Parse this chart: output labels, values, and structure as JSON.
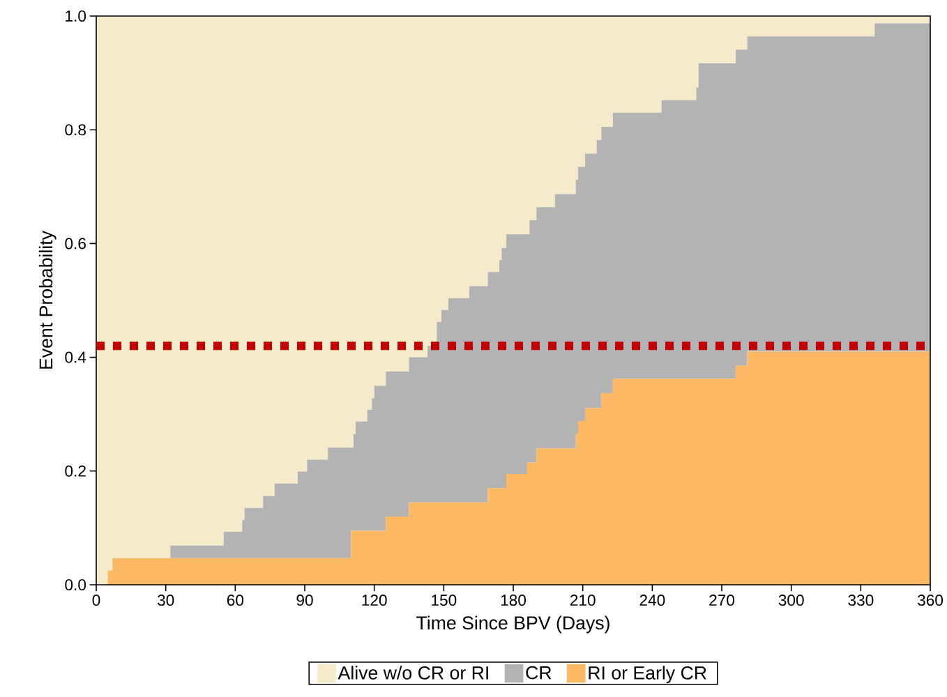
{
  "chart_data": {
    "type": "area",
    "stacked": true,
    "xlabel": "Time Since BPV (Days)",
    "ylabel": "Event Probability",
    "x": [
      0,
      5,
      5,
      7,
      7,
      32,
      32,
      55,
      55,
      63,
      63,
      64,
      64,
      72,
      72,
      77,
      77,
      87,
      87,
      91,
      91,
      100,
      100,
      110,
      110,
      111,
      111,
      112,
      112,
      117,
      117,
      119,
      119,
      120,
      120,
      125,
      125,
      135,
      135,
      143,
      143,
      147,
      147,
      149,
      149,
      152,
      152,
      161,
      161,
      169,
      169,
      174,
      174,
      175,
      175,
      177,
      177,
      186,
      186,
      187,
      187,
      190,
      190,
      198,
      198,
      207,
      207,
      208,
      208,
      211,
      211,
      216,
      216,
      218,
      218,
      223,
      223,
      244,
      244,
      259,
      259,
      260,
      260,
      276,
      276,
      281,
      281,
      336,
      336,
      360
    ],
    "series": [
      {
        "name": "RI or Early CR",
        "color": "#fdb863",
        "values": [
          0,
          0,
          0.025,
          0.025,
          0.047,
          0.047,
          0.047,
          0.047,
          0.047,
          0.047,
          0.047,
          0.047,
          0.047,
          0.047,
          0.047,
          0.047,
          0.047,
          0.047,
          0.047,
          0.047,
          0.047,
          0.047,
          0.047,
          0.047,
          0.095,
          0.095,
          0.095,
          0.095,
          0.095,
          0.095,
          0.095,
          0.095,
          0.095,
          0.095,
          0.095,
          0.095,
          0.12,
          0.12,
          0.145,
          0.145,
          0.145,
          0.145,
          0.145,
          0.145,
          0.145,
          0.145,
          0.145,
          0.145,
          0.145,
          0.145,
          0.17,
          0.17,
          0.17,
          0.17,
          0.17,
          0.17,
          0.195,
          0.195,
          0.215,
          0.215,
          0.215,
          0.215,
          0.24,
          0.24,
          0.24,
          0.24,
          0.265,
          0.265,
          0.288,
          0.288,
          0.311,
          0.311,
          0.311,
          0.311,
          0.337,
          0.337,
          0.362,
          0.362,
          0.362,
          0.362,
          0.362,
          0.362,
          0.362,
          0.362,
          0.385,
          0.385,
          0.41,
          0.41,
          0.41,
          0.41
        ]
      },
      {
        "name": "CR",
        "color": "#b3b3b3",
        "values": [
          0,
          0,
          0,
          0,
          0,
          0,
          0.022,
          0.022,
          0.046,
          0.046,
          0.067,
          0.067,
          0.088,
          0.088,
          0.109,
          0.109,
          0.131,
          0.131,
          0.152,
          0.152,
          0.173,
          0.173,
          0.194,
          0.194,
          0.146,
          0.146,
          0.17,
          0.17,
          0.192,
          0.192,
          0.213,
          0.213,
          0.233,
          0.233,
          0.255,
          0.255,
          0.255,
          0.255,
          0.255,
          0.255,
          0.275,
          0.275,
          0.317,
          0.317,
          0.338,
          0.338,
          0.359,
          0.359,
          0.38,
          0.38,
          0.38,
          0.38,
          0.401,
          0.401,
          0.422,
          0.422,
          0.421,
          0.421,
          0.401,
          0.401,
          0.426,
          0.426,
          0.424,
          0.424,
          0.447,
          0.447,
          0.447,
          0.447,
          0.447,
          0.447,
          0.447,
          0.447,
          0.471,
          0.471,
          0.468,
          0.468,
          0.468,
          0.468,
          0.49,
          0.49,
          0.512,
          0.512,
          0.555,
          0.555,
          0.556,
          0.556,
          0.554,
          0.554,
          0.577,
          0.577
        ]
      },
      {
        "name": "Alive w/o CR or RI",
        "color": "#f5ebcb",
        "values": [
          1,
          1,
          0.975,
          0.975,
          0.953,
          0.953,
          0.931,
          0.931,
          0.907,
          0.907,
          0.886,
          0.886,
          0.865,
          0.865,
          0.844,
          0.844,
          0.822,
          0.822,
          0.801,
          0.801,
          0.78,
          0.78,
          0.759,
          0.759,
          0.759,
          0.759,
          0.735,
          0.735,
          0.713,
          0.713,
          0.692,
          0.692,
          0.672,
          0.672,
          0.65,
          0.65,
          0.625,
          0.625,
          0.6,
          0.6,
          0.58,
          0.58,
          0.538,
          0.538,
          0.517,
          0.517,
          0.496,
          0.496,
          0.475,
          0.475,
          0.45,
          0.45,
          0.429,
          0.429,
          0.408,
          0.408,
          0.384,
          0.384,
          0.384,
          0.384,
          0.359,
          0.359,
          0.336,
          0.336,
          0.313,
          0.313,
          0.288,
          0.288,
          0.265,
          0.265,
          0.242,
          0.242,
          0.218,
          0.218,
          0.195,
          0.195,
          0.17,
          0.17,
          0.148,
          0.148,
          0.126,
          0.126,
          0.083,
          0.083,
          0.059,
          0.059,
          0.036,
          0.036,
          0.013,
          0.013
        ]
      }
    ],
    "xlim": [
      0,
      360
    ],
    "xticks": [
      0,
      30,
      60,
      90,
      120,
      150,
      180,
      210,
      240,
      270,
      300,
      330,
      360
    ],
    "ylim": [
      0,
      1
    ],
    "yticks": [
      {
        "value": 0,
        "label": "0.0"
      },
      {
        "value": 0.2,
        "label": "0.2"
      },
      {
        "value": 0.4,
        "label": "0.4"
      },
      {
        "value": 0.6,
        "label": "0.6"
      },
      {
        "value": 0.8,
        "label": "0.8"
      },
      {
        "value": 1,
        "label": "1.0"
      }
    ],
    "ref_lines": [
      {
        "axis": "y",
        "value": 0.42,
        "color": "#c00000",
        "line_style": "dotted"
      }
    ],
    "legend": "bottom"
  }
}
